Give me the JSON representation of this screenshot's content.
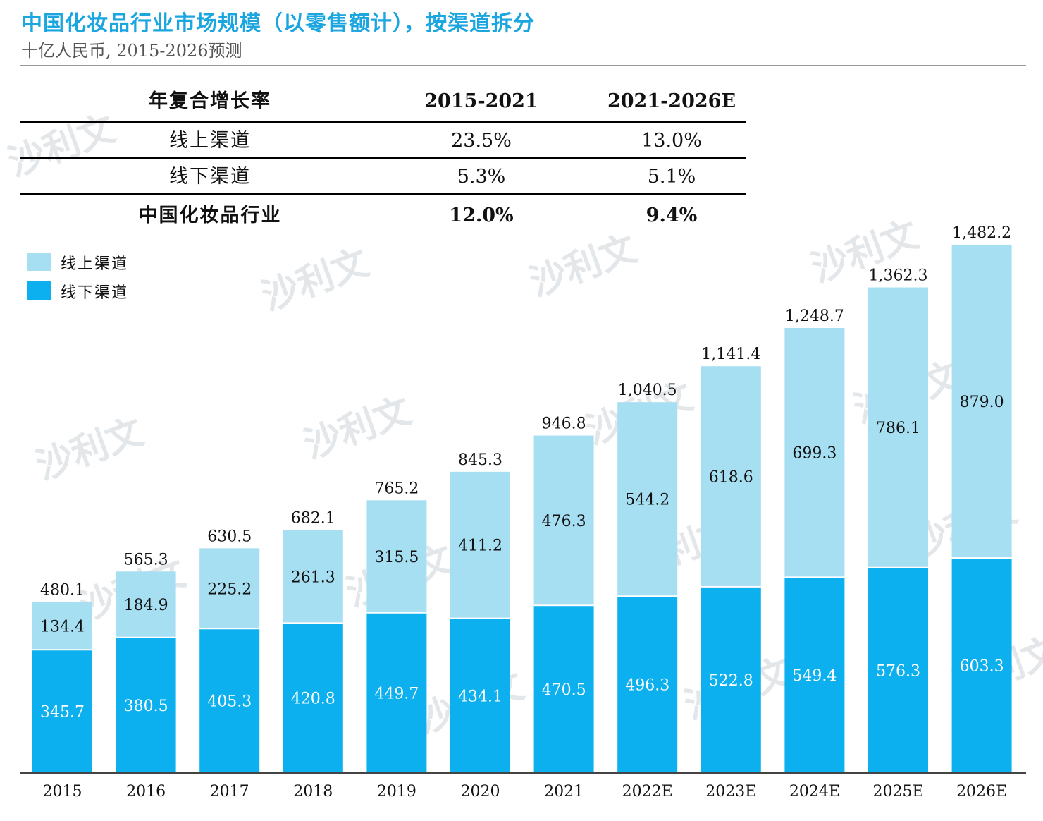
{
  "title": "中国化妆品行业市场规模（以零售额计），按渠道拆分",
  "subtitle": "十亿人民币, 2015-2026预测",
  "watermark": "沙利文",
  "cagr_table": {
    "header": [
      "年复合增长率",
      "2015-2021",
      "2021-2026E"
    ],
    "rows": [
      {
        "label": "线上渠道",
        "v1": "23.5%",
        "v2": "13.0%"
      },
      {
        "label": "线下渠道",
        "v1": "5.3%",
        "v2": "5.1%"
      },
      {
        "label": "中国化妆品行业",
        "v1": "12.0%",
        "v2": "9.4%"
      }
    ]
  },
  "colors": {
    "online": "#a6def2",
    "offline": "#0cb0ee",
    "title": "#1ba6e0"
  },
  "chart_data": {
    "type": "bar",
    "stacked": true,
    "categories": [
      "2015",
      "2016",
      "2017",
      "2018",
      "2019",
      "2020",
      "2021",
      "2022E",
      "2023E",
      "2024E",
      "2025E",
      "2026E"
    ],
    "series": [
      {
        "name": "线下渠道",
        "values": [
          345.7,
          380.5,
          405.3,
          420.8,
          449.7,
          434.1,
          470.5,
          496.3,
          522.8,
          549.4,
          576.3,
          603.3
        ]
      },
      {
        "name": "线上渠道",
        "values": [
          134.4,
          184.9,
          225.2,
          261.3,
          315.5,
          411.2,
          476.3,
          544.2,
          618.6,
          699.3,
          786.1,
          879.0
        ]
      }
    ],
    "totals": [
      "480.1",
      "565.3",
      "630.5",
      "682.1",
      "765.2",
      "845.3",
      "946.8",
      "1,040.5",
      "1,141.4",
      "1,248.7",
      "1,362.3",
      "1,482.2"
    ],
    "ylim": [
      0,
      1482.2
    ],
    "legend": [
      "线上渠道",
      "线下渠道"
    ],
    "legend_position": "top-left"
  }
}
